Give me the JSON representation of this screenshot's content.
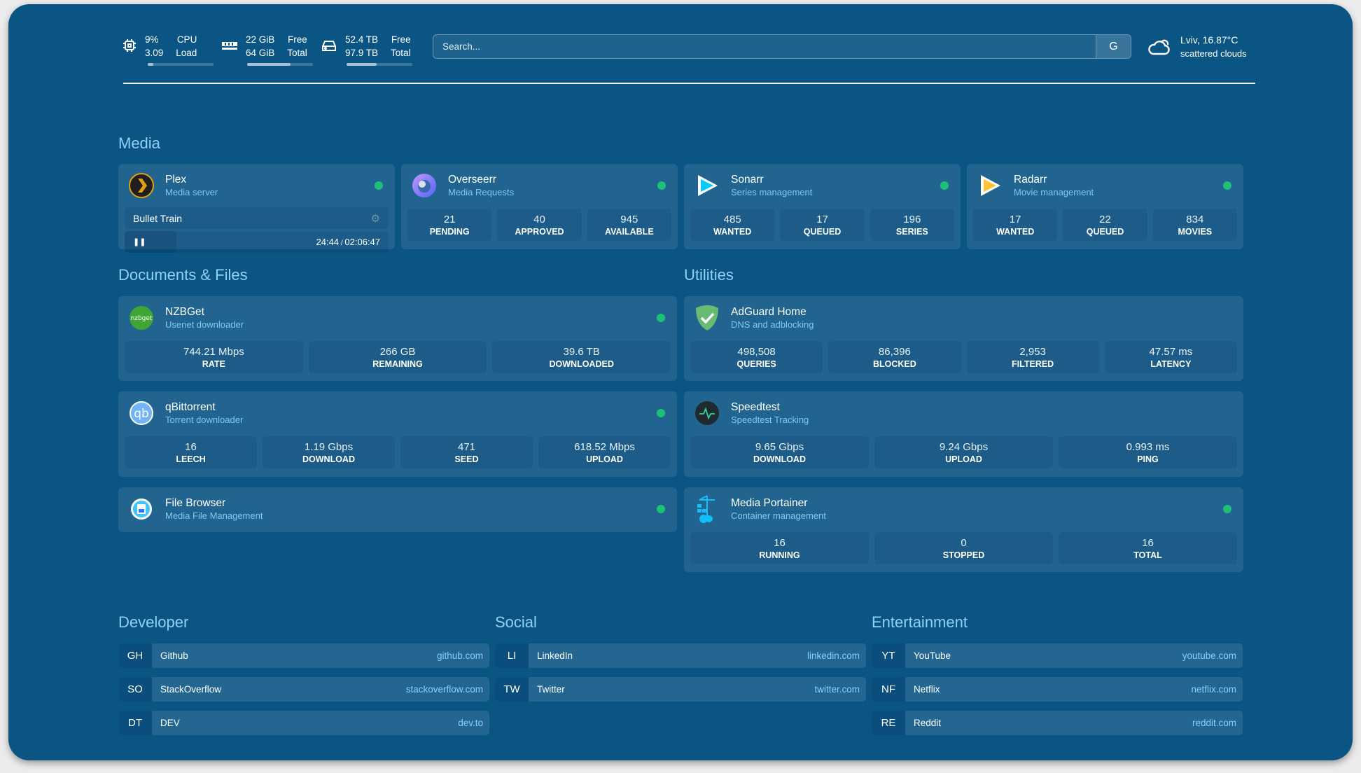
{
  "resources": [
    {
      "icon": "cpu-icon",
      "a": "9%",
      "b": "CPU",
      "c": "3.09",
      "d": "Load",
      "fill": 0.09
    },
    {
      "icon": "memory-icon",
      "a": "22 GiB",
      "b": "Free",
      "c": "64 GiB",
      "d": "Total",
      "fill": 0.66
    },
    {
      "icon": "disk-icon",
      "a": "52.4 TB",
      "b": "Free",
      "c": "97.9 TB",
      "d": "Total",
      "fill": 0.46
    }
  ],
  "search": {
    "placeholder": "Search...",
    "button": "G"
  },
  "weather": {
    "icon": "cloud-sun-icon",
    "location": "Lviv, 16.87°C",
    "desc": "scattered clouds"
  },
  "colors": {
    "background": "#0b5585",
    "status_ok": "#1dc077",
    "heading": "#8fd2f7",
    "subtitle": "#7fcaf2"
  },
  "sections": {
    "media": "Media",
    "documents": "Documents & Files",
    "utilities": "Utilities",
    "developer": "Developer",
    "social": "Social",
    "entertainment": "Entertainment"
  },
  "media": [
    {
      "id": "plex",
      "icon": "plex-icon",
      "title": "Plex",
      "subtitle": "Media server",
      "stream": {
        "title": "Bullet Train",
        "progress": "24:44",
        "duration": "02:06:47",
        "state": "paused"
      }
    },
    {
      "id": "overseerr",
      "icon": "overseerr-icon",
      "title": "Overseerr",
      "subtitle": "Media Requests",
      "stats": [
        {
          "v": "21",
          "l": "PENDING"
        },
        {
          "v": "40",
          "l": "APPROVED"
        },
        {
          "v": "945",
          "l": "AVAILABLE"
        }
      ]
    },
    {
      "id": "sonarr",
      "icon": "sonarr-icon",
      "title": "Sonarr",
      "subtitle": "Series management",
      "stats": [
        {
          "v": "485",
          "l": "WANTED"
        },
        {
          "v": "17",
          "l": "QUEUED"
        },
        {
          "v": "196",
          "l": "SERIES"
        }
      ]
    },
    {
      "id": "radarr",
      "icon": "radarr-icon",
      "title": "Radarr",
      "subtitle": "Movie management",
      "stats": [
        {
          "v": "17",
          "l": "WANTED"
        },
        {
          "v": "22",
          "l": "QUEUED"
        },
        {
          "v": "834",
          "l": "MOVIES"
        }
      ]
    }
  ],
  "documents": [
    {
      "id": "nzbget",
      "icon": "nzbget-icon",
      "icon_text": "nzbget",
      "title": "NZBGet",
      "subtitle": "Usenet downloader",
      "stats": [
        {
          "v": "744.21 Mbps",
          "l": "RATE"
        },
        {
          "v": "266 GB",
          "l": "REMAINING"
        },
        {
          "v": "39.6 TB",
          "l": "DOWNLOADED"
        }
      ]
    },
    {
      "id": "qbittorrent",
      "icon": "qbittorrent-icon",
      "icon_text": "qb",
      "title": "qBittorrent",
      "subtitle": "Torrent downloader",
      "stats": [
        {
          "v": "16",
          "l": "LEECH"
        },
        {
          "v": "1.19 Gbps",
          "l": "DOWNLOAD"
        },
        {
          "v": "471",
          "l": "SEED"
        },
        {
          "v": "618.52 Mbps",
          "l": "UPLOAD"
        }
      ]
    },
    {
      "id": "filebrowser",
      "icon": "filebrowser-icon",
      "title": "File Browser",
      "subtitle": "Media File Management"
    }
  ],
  "utilities": [
    {
      "id": "adguard",
      "icon": "adguard-icon",
      "title": "AdGuard Home",
      "subtitle": "DNS and adblocking",
      "nodot": true,
      "stats": [
        {
          "v": "498,508",
          "l": "QUERIES"
        },
        {
          "v": "86,396",
          "l": "BLOCKED"
        },
        {
          "v": "2,953",
          "l": "FILTERED"
        },
        {
          "v": "47.57 ms",
          "l": "LATENCY"
        }
      ]
    },
    {
      "id": "speedtest",
      "icon": "speedtest-icon",
      "title": "Speedtest",
      "subtitle": "Speedtest Tracking",
      "nodot": true,
      "stats": [
        {
          "v": "9.65 Gbps",
          "l": "DOWNLOAD"
        },
        {
          "v": "9.24 Gbps",
          "l": "UPLOAD"
        },
        {
          "v": "0.993 ms",
          "l": "PING"
        }
      ]
    },
    {
      "id": "portainer",
      "icon": "portainer-icon",
      "title": "Media Portainer",
      "subtitle": "Container management",
      "stats": [
        {
          "v": "16",
          "l": "RUNNING"
        },
        {
          "v": "0",
          "l": "STOPPED"
        },
        {
          "v": "16",
          "l": "TOTAL"
        }
      ]
    }
  ],
  "bookmarks": {
    "developer": [
      {
        "abbr": "GH",
        "name": "Github",
        "url": "github.com"
      },
      {
        "abbr": "SO",
        "name": "StackOverflow",
        "url": "stackoverflow.com"
      },
      {
        "abbr": "DT",
        "name": "DEV",
        "url": "dev.to"
      }
    ],
    "social": [
      {
        "abbr": "LI",
        "name": "LinkedIn",
        "url": "linkedin.com"
      },
      {
        "abbr": "TW",
        "name": "Twitter",
        "url": "twitter.com"
      }
    ],
    "entertainment": [
      {
        "abbr": "YT",
        "name": "YouTube",
        "url": "youtube.com"
      },
      {
        "abbr": "NF",
        "name": "Netflix",
        "url": "netflix.com"
      },
      {
        "abbr": "RE",
        "name": "Reddit",
        "url": "reddit.com"
      }
    ]
  }
}
